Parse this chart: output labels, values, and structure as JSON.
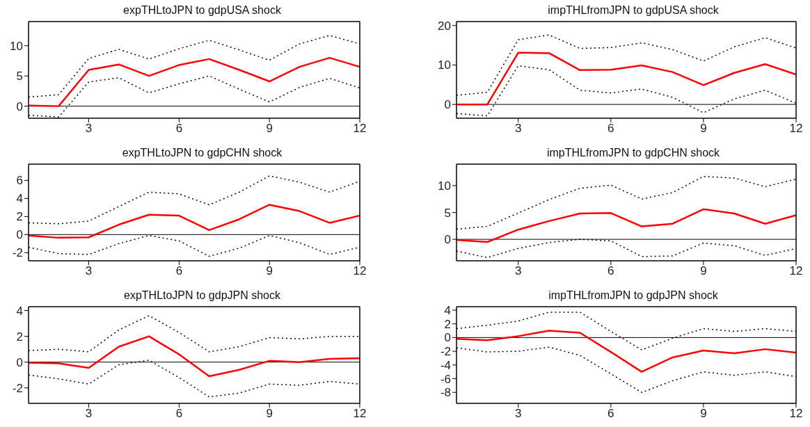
{
  "chart_data": [
    {
      "type": "line",
      "title": "expTHLtoJPN to gdpUSA shock",
      "x": [
        1,
        2,
        3,
        4,
        5,
        6,
        7,
        8,
        9,
        10,
        11,
        12
      ],
      "xlim": [
        1,
        12
      ],
      "xticks": [
        3,
        6,
        9,
        12
      ],
      "ylim": [
        -2,
        14
      ],
      "yticks": [
        0,
        5,
        10
      ],
      "ref_lines": [
        {
          "axis": "y",
          "value": 0,
          "color": "#000000"
        }
      ],
      "series": [
        {
          "color": "#ff0000",
          "line_style": "solid",
          "values": [
            0.1,
            0,
            6.0,
            6.9,
            5.0,
            6.8,
            7.8,
            6.0,
            4.1,
            6.5,
            8.0,
            6.5
          ]
        },
        {
          "color": "#000000",
          "line_style": "dotted",
          "values": [
            1.5,
            1.9,
            7.9,
            9.4,
            7.8,
            9.5,
            10.9,
            9.3,
            7.6,
            10.3,
            11.7,
            10.3
          ]
        },
        {
          "color": "#000000",
          "line_style": "dotted",
          "values": [
            -1.5,
            -1.8,
            4.0,
            4.7,
            2.2,
            3.7,
            5.0,
            2.8,
            0.7,
            3.1,
            4.6,
            3.0
          ]
        }
      ]
    },
    {
      "type": "line",
      "title": "impTHLfromJPN to gdpUSA shock",
      "x": [
        1,
        2,
        3,
        4,
        5,
        6,
        7,
        8,
        9,
        10,
        11,
        12
      ],
      "xlim": [
        1,
        12
      ],
      "xticks": [
        3,
        6,
        9,
        12
      ],
      "ylim": [
        -3.5,
        21
      ],
      "yticks": [
        0,
        10,
        20
      ],
      "ref_lines": [
        {
          "axis": "y",
          "value": 0,
          "color": "#000000"
        }
      ],
      "series": [
        {
          "color": "#ff0000",
          "line_style": "solid",
          "values": [
            0,
            0,
            13.1,
            13.0,
            8.7,
            8.8,
            9.9,
            8.2,
            4.9,
            8.0,
            10.2,
            7.6
          ]
        },
        {
          "color": "#000000",
          "line_style": "dotted",
          "values": [
            2.3,
            3.1,
            16.4,
            17.6,
            14.2,
            14.4,
            15.6,
            13.9,
            11.0,
            14.6,
            16.9,
            14.3
          ]
        },
        {
          "color": "#000000",
          "line_style": "dotted",
          "values": [
            -2.3,
            -2.9,
            9.8,
            8.8,
            3.6,
            2.9,
            3.9,
            1.8,
            -2.1,
            1.4,
            3.6,
            0.3
          ]
        }
      ]
    },
    {
      "type": "line",
      "title": "expTHLtoJPN to gdpCHN shock",
      "x": [
        1,
        2,
        3,
        4,
        5,
        6,
        7,
        8,
        9,
        10,
        11,
        12
      ],
      "xlim": [
        1,
        12
      ],
      "xticks": [
        3,
        6,
        9,
        12
      ],
      "ylim": [
        -2.9,
        7.8
      ],
      "yticks": [
        -2,
        0,
        2,
        4,
        6
      ],
      "ref_lines": [
        {
          "axis": "y",
          "value": 0,
          "color": "#000000"
        }
      ],
      "series": [
        {
          "color": "#ff0000",
          "line_style": "solid",
          "values": [
            -0.1,
            -0.35,
            -0.3,
            1.1,
            2.2,
            2.1,
            0.5,
            1.7,
            3.3,
            2.6,
            1.3,
            2.1
          ]
        },
        {
          "color": "#000000",
          "line_style": "dotted",
          "values": [
            1.3,
            1.2,
            1.5,
            3.1,
            4.7,
            4.5,
            3.3,
            4.7,
            6.5,
            5.8,
            4.7,
            5.9
          ]
        },
        {
          "color": "#000000",
          "line_style": "dotted",
          "values": [
            -1.4,
            -2.1,
            -2.2,
            -1.0,
            -0.1,
            -0.7,
            -2.4,
            -1.5,
            -0.1,
            -0.9,
            -2.2,
            -1.4
          ]
        }
      ]
    },
    {
      "type": "line",
      "title": "impTHLfromJPN to gdpCHN shock",
      "x": [
        1,
        2,
        3,
        4,
        5,
        6,
        7,
        8,
        9,
        10,
        11,
        12
      ],
      "xlim": [
        1,
        12
      ],
      "xticks": [
        3,
        6,
        9,
        12
      ],
      "ylim": [
        -4,
        14
      ],
      "yticks": [
        0,
        5,
        10
      ],
      "ref_lines": [
        {
          "axis": "y",
          "value": 0,
          "color": "#000000"
        }
      ],
      "series": [
        {
          "color": "#ff0000",
          "line_style": "solid",
          "values": [
            -0.1,
            -0.5,
            1.8,
            3.4,
            4.8,
            4.9,
            2.4,
            2.9,
            5.6,
            4.8,
            2.9,
            4.5
          ]
        },
        {
          "color": "#000000",
          "line_style": "dotted",
          "values": [
            1.9,
            2.4,
            4.9,
            7.4,
            9.5,
            10.1,
            7.5,
            8.7,
            11.7,
            11.4,
            9.8,
            11.2
          ]
        },
        {
          "color": "#000000",
          "line_style": "dotted",
          "values": [
            -2.2,
            -3.4,
            -1.7,
            -0.6,
            0.0,
            -0.3,
            -3.2,
            -3.1,
            -0.7,
            -1.2,
            -3.0,
            -1.7
          ]
        }
      ]
    },
    {
      "type": "line",
      "title": "expTHLtoJPN to gdpJPN shock",
      "x": [
        1,
        2,
        3,
        4,
        5,
        6,
        7,
        8,
        9,
        10,
        11,
        12
      ],
      "xlim": [
        1,
        12
      ],
      "xticks": [
        3,
        6,
        9,
        12
      ],
      "ylim": [
        -3.2,
        4.3
      ],
      "yticks": [
        -2,
        0,
        2,
        4
      ],
      "ref_lines": [
        {
          "axis": "y",
          "value": 0,
          "color": "#000000"
        }
      ],
      "series": [
        {
          "color": "#ff0000",
          "line_style": "solid",
          "values": [
            -0.05,
            -0.1,
            -0.45,
            1.2,
            2.0,
            0.6,
            -1.1,
            -0.6,
            0.1,
            0.0,
            0.25,
            0.3
          ]
        },
        {
          "color": "#000000",
          "line_style": "dotted",
          "values": [
            0.9,
            1.0,
            0.8,
            2.5,
            3.6,
            2.3,
            0.8,
            1.2,
            1.9,
            1.8,
            2.0,
            2.0
          ]
        },
        {
          "color": "#000000",
          "line_style": "dotted",
          "values": [
            -1.0,
            -1.3,
            -1.7,
            -0.2,
            0.15,
            -1.2,
            -2.7,
            -2.4,
            -1.7,
            -1.8,
            -1.5,
            -1.7
          ]
        }
      ]
    },
    {
      "type": "line",
      "title": "impTHLfromJPN to gdpJPN shock",
      "x": [
        1,
        2,
        3,
        4,
        5,
        6,
        7,
        8,
        9,
        10,
        11,
        12
      ],
      "xlim": [
        1,
        12
      ],
      "xticks": [
        3,
        6,
        9,
        12
      ],
      "ylim": [
        -9.6,
        4.5
      ],
      "yticks": [
        -8,
        -6,
        -4,
        -2,
        0,
        2,
        4
      ],
      "ref_lines": [
        {
          "axis": "y",
          "value": 0,
          "color": "#000000"
        }
      ],
      "series": [
        {
          "color": "#ff0000",
          "line_style": "solid",
          "values": [
            -0.2,
            -0.4,
            0.2,
            1.0,
            0.7,
            -2.1,
            -5.0,
            -2.9,
            -1.9,
            -2.3,
            -1.7,
            -2.2
          ]
        },
        {
          "color": "#000000",
          "line_style": "dotted",
          "values": [
            1.3,
            1.8,
            2.4,
            3.7,
            3.7,
            0.9,
            -1.8,
            -0.1,
            1.3,
            0.9,
            1.3,
            0.9
          ]
        },
        {
          "color": "#000000",
          "line_style": "dotted",
          "values": [
            -1.5,
            -2.1,
            -2.0,
            -1.4,
            -2.6,
            -5.3,
            -8.0,
            -6.3,
            -5.0,
            -5.5,
            -5.0,
            -5.7
          ]
        }
      ]
    }
  ]
}
